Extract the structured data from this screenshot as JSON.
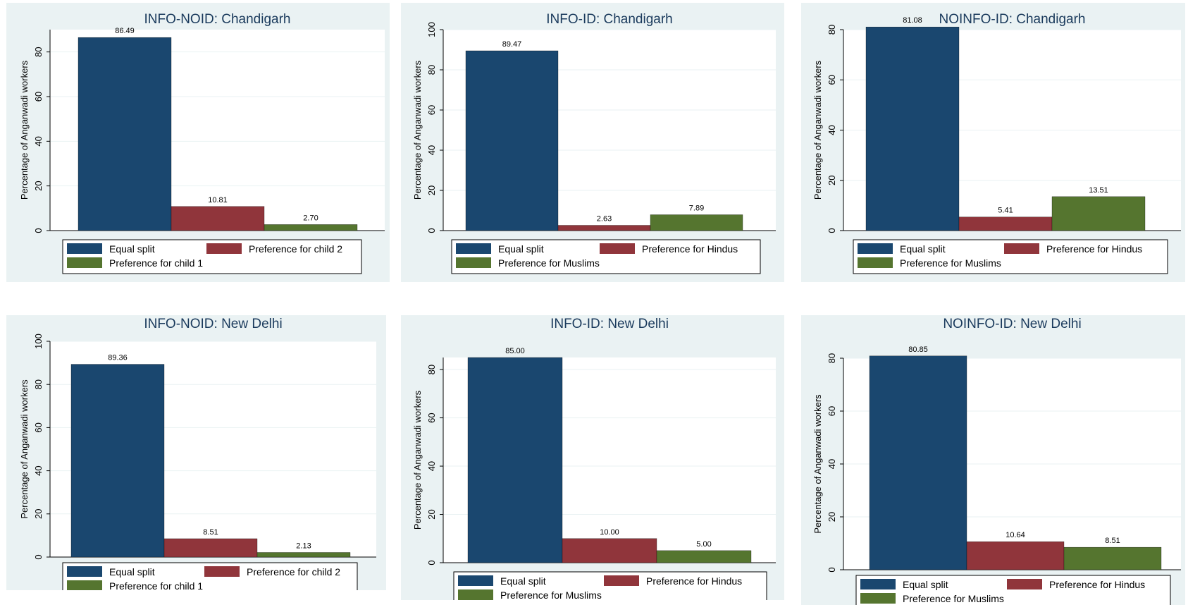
{
  "colors": {
    "equal": "#1a476f",
    "pref_a": "#90353b",
    "pref_b": "#55752f",
    "panel_bg": "#eaf2f3"
  },
  "chart_data": [
    {
      "type": "bar",
      "title": "INFO-NOID: Chandigarh",
      "ylabel": "Percentage of Anganwadi workers",
      "categories": [
        "Equal split",
        "Preference for child 2",
        "Preference for child 1"
      ],
      "values": [
        86.49,
        10.81,
        2.7
      ],
      "labels": [
        "86.49",
        "10.81",
        "2.70"
      ],
      "ylim": [
        0,
        90
      ],
      "yticks": [
        0,
        20,
        40,
        60,
        80
      ],
      "grid": true,
      "legend": "bottom"
    },
    {
      "type": "bar",
      "title": "INFO-ID: Chandigarh",
      "ylabel": "Percentage of Anganwadi workers",
      "categories": [
        "Equal split",
        "Preference for Hindus",
        "Preference for Muslims"
      ],
      "values": [
        89.47,
        2.63,
        7.89
      ],
      "labels": [
        "89.47",
        "2.63",
        "7.89"
      ],
      "ylim": [
        0,
        100
      ],
      "yticks": [
        0,
        20,
        40,
        60,
        80,
        100
      ],
      "grid": true,
      "legend": "bottom"
    },
    {
      "type": "bar",
      "title": "NOINFO-ID: Chandigarh",
      "ylabel": "Percentage of Anganwadi workers",
      "categories": [
        "Equal split",
        "Preference for Hindus",
        "Preference for Muslims"
      ],
      "values": [
        81.08,
        5.41,
        13.51
      ],
      "labels": [
        "81.08",
        "5.41",
        "13.51"
      ],
      "ylim": [
        0,
        80
      ],
      "yticks": [
        0,
        20,
        40,
        60,
        80
      ],
      "grid": true,
      "legend": "bottom"
    },
    {
      "type": "bar",
      "title": "INFO-NOID: New Delhi",
      "ylabel": "Percentage of Anganwadi workers",
      "categories": [
        "Equal split",
        "Preference for child 2",
        "Preference for child 1"
      ],
      "values": [
        89.36,
        8.51,
        2.13
      ],
      "labels": [
        "89.36",
        "8.51",
        "2.13"
      ],
      "ylim": [
        0,
        100
      ],
      "yticks": [
        0,
        20,
        40,
        60,
        80,
        100
      ],
      "grid": true,
      "legend": "bottom"
    },
    {
      "type": "bar",
      "title": "INFO-ID: New Delhi",
      "ylabel": "Percentage of Anganwadi workers",
      "categories": [
        "Equal split",
        "Preference for Hindus",
        "Preference for Muslims"
      ],
      "values": [
        85.0,
        10.0,
        5.0
      ],
      "labels": [
        "85.00",
        "10.00",
        "5.00"
      ],
      "ylim": [
        0,
        85
      ],
      "yticks": [
        0,
        20,
        40,
        60,
        80
      ],
      "grid": true,
      "legend": "bottom"
    },
    {
      "type": "bar",
      "title": "NOINFO-ID: New Delhi",
      "ylabel": "Percentage of Anganwadi workers",
      "categories": [
        "Equal split",
        "Preference for Hindus",
        "Preference for Muslims"
      ],
      "values": [
        80.85,
        10.64,
        8.51
      ],
      "labels": [
        "80.85",
        "10.64",
        "8.51"
      ],
      "ylim": [
        0,
        80
      ],
      "yticks": [
        0,
        20,
        40,
        60,
        80
      ],
      "grid": true,
      "legend": "bottom"
    }
  ]
}
